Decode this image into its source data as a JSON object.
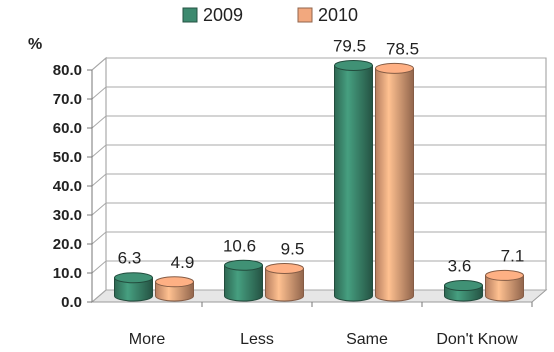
{
  "chart_data": {
    "type": "bar",
    "title": "",
    "xlabel": "",
    "ylabel": "%",
    "ylim": [
      0,
      80
    ],
    "yticks": [
      "0.0",
      "10.0",
      "20.0",
      "30.0",
      "40.0",
      "50.0",
      "60.0",
      "70.0",
      "80.0"
    ],
    "categories": [
      "More",
      "Less",
      "Same",
      "Don't Know"
    ],
    "series": [
      {
        "name": "2009",
        "color": "#3d8a6f",
        "values": [
          6.3,
          10.6,
          79.5,
          3.6
        ]
      },
      {
        "name": "2010",
        "color": "#f2a87e",
        "values": [
          4.9,
          9.5,
          78.5,
          7.1
        ]
      }
    ],
    "data_labels": [
      [
        "6.3",
        "10.6",
        "79.5",
        "3.6"
      ],
      [
        "4.9",
        "9.5",
        "78.5",
        "7.1"
      ]
    ],
    "legend_position": "top",
    "grid": true,
    "style": "3d-cylinder"
  }
}
